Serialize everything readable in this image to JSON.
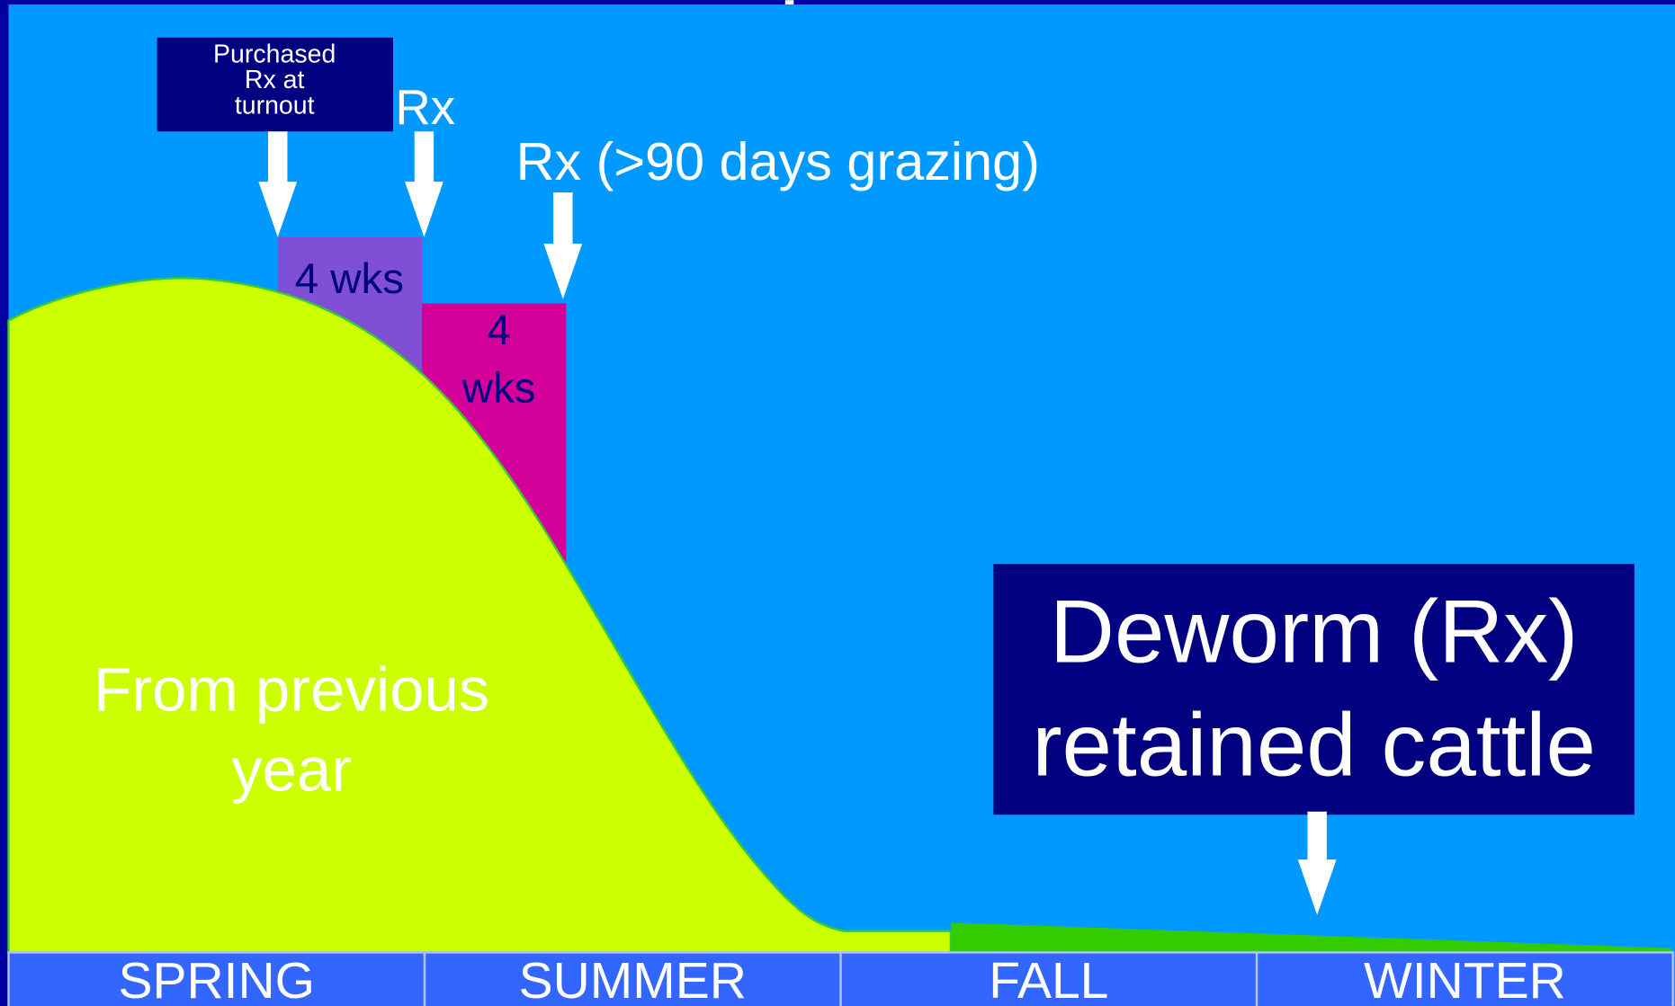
{
  "callouts": {
    "purchased": [
      "Purchased",
      "Rx at",
      "turnout"
    ],
    "rx": "Rx",
    "rx_90": "Rx (>90 days grazing)"
  },
  "periods": [
    {
      "label": [
        "4 wks"
      ]
    },
    {
      "label": [
        "4",
        "wks"
      ]
    }
  ],
  "curve_label": [
    "From previous",
    "year"
  ],
  "deworm": [
    "Deworm (Rx)",
    "retained cattle"
  ],
  "seasons": [
    "SPRING",
    "SUMMER",
    "FALL",
    "WINTER"
  ]
}
